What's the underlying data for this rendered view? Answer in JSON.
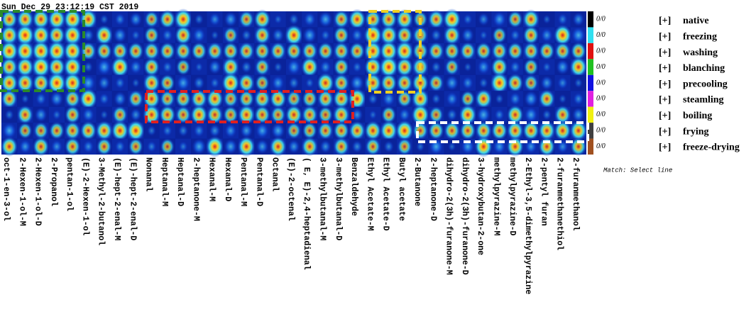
{
  "timestamp": "Sun Dec 29 23:12:19 CST 2019",
  "columns": [
    "oct-1-en-3-ol",
    "2-Hexen-1-ol-M",
    "2-Hexen-1-ol-D",
    "2-Propanol",
    "pentan-1-ol",
    "(E)-2-Hexen-1-ol",
    "3-Methyl-2-butanol",
    "(E)-hept-2-enal-M",
    "(E)-hept-2-enal-D",
    "Nonanal",
    "Heptanal-M",
    "Heptanal-D",
    "2-heptanone-M",
    "Hexanal-M",
    "Hexanal-D",
    "Pentanal-M",
    "Pentanal-D",
    "Octanal",
    "(E)-2-octenal",
    "( E, E)-2,4-heptadienal",
    "3-methylbutanal-M",
    "3-methylbutanal-D",
    "Benzaldehyde",
    "Ethyl Acetate-M",
    "Ethyl Acetate-D",
    "Butyl acetate",
    "2-Butanone",
    "2-heptanone-D",
    "dihydro-2(3h)-furanone-M",
    "dihydro-2(3h)-furanone-D",
    "3-hydroxybutan-2-one",
    "methylpyrazine-M",
    "methylpyrazine-D",
    "2-Ethyl-3,5-dimethylpyrazine",
    "2-pentyl furan",
    "2-furanmethanethiol",
    "2-furanmethanol"
  ],
  "rows": [
    {
      "ratio": "0/0",
      "marker": "[+]",
      "name": "native"
    },
    {
      "ratio": "0/0",
      "marker": "[+]",
      "name": "freezing"
    },
    {
      "ratio": "0/0",
      "marker": "[+]",
      "name": "washing"
    },
    {
      "ratio": "0/0",
      "marker": "[+]",
      "name": "blanching"
    },
    {
      "ratio": "0/0",
      "marker": "[+]",
      "name": "precooling"
    },
    {
      "ratio": "0/0",
      "marker": "[+]",
      "name": "steamling"
    },
    {
      "ratio": "0/0",
      "marker": "[+]",
      "name": "boiling"
    },
    {
      "ratio": "0/0",
      "marker": "[+]",
      "name": "frying"
    },
    {
      "ratio": "0/0",
      "marker": "[+]",
      "name": "freeze-drying"
    }
  ],
  "match_text": "Match: Select line"
}
